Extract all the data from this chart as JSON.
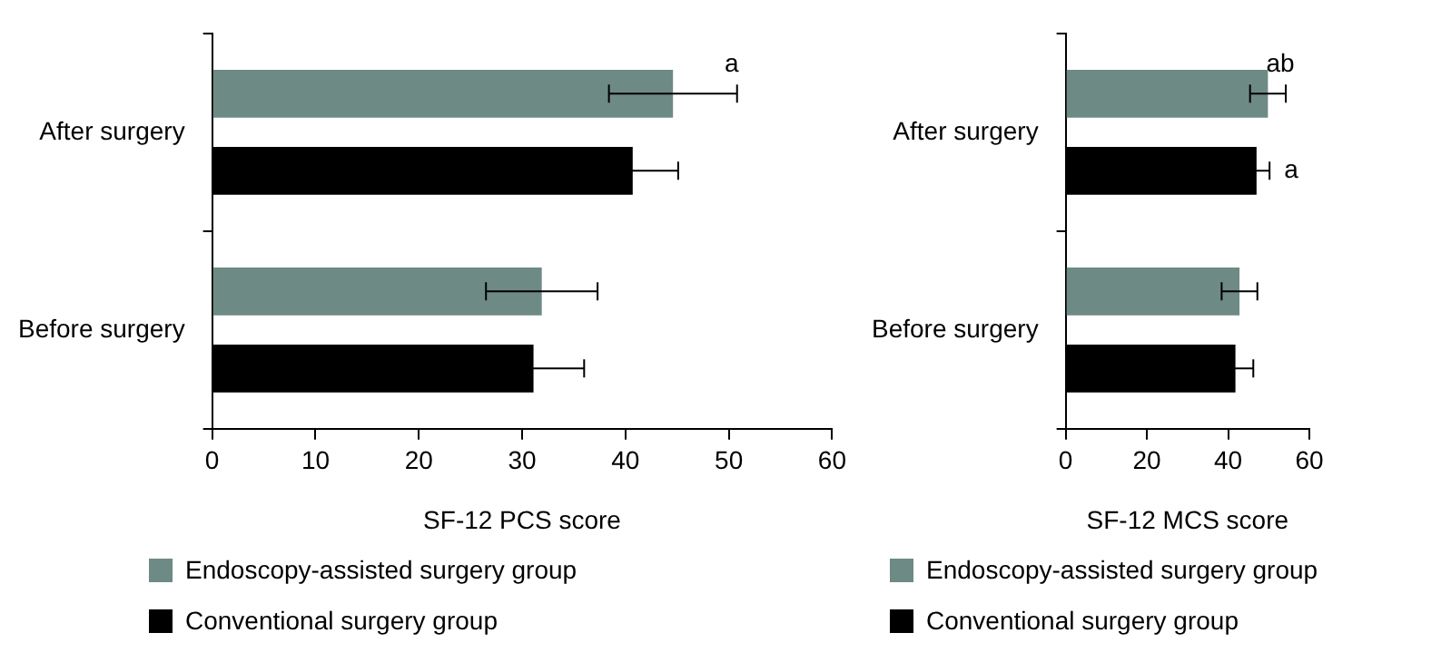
{
  "chart_data": [
    {
      "type": "bar",
      "orientation": "horizontal",
      "xlabel": "SF-12 PCS score",
      "categories": [
        "After surgery",
        "Before surgery"
      ],
      "xlim": [
        0,
        60
      ],
      "xticks": [
        0,
        10,
        20,
        30,
        40,
        50,
        60
      ],
      "grid": false,
      "legend": "bottom",
      "series": [
        {
          "name": "Endoscopy-assisted surgery group",
          "color": "#6e8a84",
          "values": [
            44.6,
            31.9
          ],
          "errors": [
            6.2,
            5.4
          ]
        },
        {
          "name": "Conventional surgery group",
          "color": "#000000",
          "values": [
            40.7,
            31.1
          ],
          "errors": [
            4.4,
            4.9
          ]
        }
      ],
      "annotations": [
        "a"
      ]
    },
    {
      "type": "bar",
      "orientation": "horizontal",
      "xlabel": "SF-12 MCS score",
      "categories": [
        "After surgery",
        "Before surgery"
      ],
      "xlim": [
        0,
        60
      ],
      "xticks": [
        0,
        20,
        40,
        60
      ],
      "grid": false,
      "legend": "bottom",
      "series": [
        {
          "name": "Endoscopy-assisted surgery group",
          "color": "#6e8a84",
          "values": [
            49.8,
            42.8
          ],
          "errors": [
            4.4,
            4.4
          ]
        },
        {
          "name": "Conventional surgery group",
          "color": "#000000",
          "values": [
            47.0,
            41.8
          ],
          "errors": [
            3.2,
            4.4
          ]
        }
      ],
      "annotations": [
        "ab",
        "a"
      ]
    }
  ]
}
